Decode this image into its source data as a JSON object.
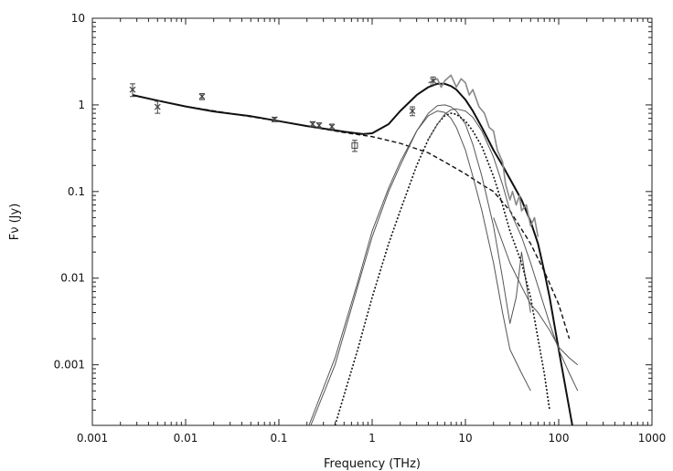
{
  "chart_data": {
    "type": "scatter",
    "title": "",
    "xlabel": "Frequency (THz)",
    "ylabel": "Fν (Jy)",
    "xscale": "log",
    "yscale": "log",
    "xlim": [
      0.001,
      1000
    ],
    "ylim": [
      0.0002,
      10
    ],
    "grid": false,
    "legend": "none",
    "x_ticks": [
      {
        "value": 0.001,
        "label": "0.001"
      },
      {
        "value": 0.01,
        "label": "0.01"
      },
      {
        "value": 0.1,
        "label": "0.1"
      },
      {
        "value": 1,
        "label": "1"
      },
      {
        "value": 10,
        "label": "10"
      },
      {
        "value": 100,
        "label": "100"
      },
      {
        "value": 1000,
        "label": "1000"
      }
    ],
    "y_ticks": [
      {
        "value": 0.001,
        "label": "0.001"
      },
      {
        "value": 0.01,
        "label": "0.01"
      },
      {
        "value": 0.1,
        "label": "0.1"
      },
      {
        "value": 1,
        "label": "1"
      },
      {
        "value": 10,
        "label": "10"
      }
    ],
    "colors": {
      "axis": "#222222",
      "model_total": "#111111",
      "component": "#555555",
      "spectrum": "#888888",
      "points": "#444444"
    },
    "points": [
      {
        "x": 0.0027,
        "y": 1.5,
        "err": 0.25,
        "marker": "x"
      },
      {
        "x": 0.005,
        "y": 0.95,
        "err": 0.15,
        "marker": "x"
      },
      {
        "x": 0.015,
        "y": 1.25,
        "err": 0.1,
        "marker": "x"
      },
      {
        "x": 0.09,
        "y": 0.68,
        "err": 0.04,
        "marker": "x"
      },
      {
        "x": 0.23,
        "y": 0.6,
        "err": 0.04,
        "marker": "x"
      },
      {
        "x": 0.27,
        "y": 0.58,
        "err": 0.04,
        "marker": "x"
      },
      {
        "x": 0.37,
        "y": 0.56,
        "err": 0.04,
        "marker": "x"
      },
      {
        "x": 0.65,
        "y": 0.34,
        "err": 0.05,
        "marker": "square"
      },
      {
        "x": 2.7,
        "y": 0.85,
        "err": 0.1,
        "marker": "x"
      },
      {
        "x": 4.5,
        "y": 1.9,
        "err": 0.2,
        "marker": "x"
      }
    ],
    "series": [
      {
        "style": "solid-thick",
        "x": [
          0.0027,
          0.005,
          0.01,
          0.02,
          0.05,
          0.1,
          0.2,
          0.5,
          0.8,
          1,
          1.5,
          2,
          3,
          4,
          5,
          6,
          7,
          8,
          10,
          12,
          15,
          20,
          25,
          30,
          40,
          50,
          60,
          70,
          80,
          100,
          120,
          140
        ],
        "y": [
          1.3,
          1.12,
          0.96,
          0.84,
          0.74,
          0.65,
          0.57,
          0.49,
          0.46,
          0.47,
          0.6,
          0.85,
          1.3,
          1.6,
          1.75,
          1.75,
          1.65,
          1.5,
          1.15,
          0.85,
          0.55,
          0.3,
          0.2,
          0.14,
          0.08,
          0.045,
          0.025,
          0.012,
          0.006,
          0.0015,
          0.0005,
          0.0002
        ]
      },
      {
        "style": "dashed",
        "x": [
          0.0027,
          0.01,
          0.1,
          0.5,
          1,
          2,
          4,
          7,
          10,
          15,
          20,
          30,
          50,
          70,
          100,
          130
        ],
        "y": [
          1.3,
          0.96,
          0.65,
          0.48,
          0.43,
          0.36,
          0.28,
          0.2,
          0.16,
          0.12,
          0.1,
          0.06,
          0.025,
          0.012,
          0.005,
          0.002
        ]
      },
      {
        "style": "solid-thin",
        "x": [
          0.22,
          0.4,
          0.7,
          1,
          1.5,
          2,
          3,
          4,
          5,
          6,
          7,
          8,
          10,
          12,
          15,
          20,
          25,
          30,
          35,
          40,
          50
        ],
        "y": [
          0.0002,
          0.001,
          0.008,
          0.03,
          0.1,
          0.2,
          0.5,
          0.8,
          0.98,
          1.0,
          0.95,
          0.85,
          0.6,
          0.35,
          0.15,
          0.04,
          0.01,
          0.003,
          0.006,
          0.02,
          0.004
        ]
      },
      {
        "style": "solid-thin",
        "x": [
          0.21,
          0.4,
          0.7,
          1,
          1.5,
          2,
          3,
          4,
          5,
          6,
          7,
          8,
          10,
          12,
          15,
          20,
          25,
          30,
          40,
          50
        ],
        "y": [
          0.0002,
          0.0012,
          0.009,
          0.035,
          0.11,
          0.22,
          0.5,
          0.75,
          0.85,
          0.82,
          0.7,
          0.55,
          0.3,
          0.15,
          0.06,
          0.015,
          0.004,
          0.0015,
          0.0008,
          0.0005
        ]
      },
      {
        "style": "dotted",
        "x": [
          0.4,
          0.7,
          1,
          1.5,
          2,
          3,
          4,
          5,
          6,
          7,
          8,
          10,
          12,
          15,
          20,
          25,
          30,
          40,
          50,
          60,
          70,
          80
        ],
        "y": [
          0.0002,
          0.0015,
          0.006,
          0.025,
          0.06,
          0.2,
          0.4,
          0.6,
          0.75,
          0.8,
          0.78,
          0.65,
          0.5,
          0.33,
          0.15,
          0.07,
          0.035,
          0.015,
          0.006,
          0.002,
          0.0008,
          0.0003
        ]
      },
      {
        "style": "solid-thin",
        "x": [
          4,
          5,
          6,
          7,
          8,
          10,
          12,
          15,
          20,
          25,
          30,
          40,
          50,
          60,
          80,
          100,
          130,
          160
        ],
        "y": [
          0.4,
          0.6,
          0.78,
          0.88,
          0.9,
          0.85,
          0.72,
          0.5,
          0.25,
          0.12,
          0.06,
          0.03,
          0.015,
          0.008,
          0.003,
          0.0015,
          0.0008,
          0.0005
        ]
      },
      {
        "style": "solid-thin",
        "x": [
          20,
          30,
          40,
          50,
          60,
          80,
          100,
          130,
          160
        ],
        "y": [
          0.05,
          0.015,
          0.008,
          0.005,
          0.004,
          0.0025,
          0.0016,
          0.0012,
          0.001
        ]
      },
      {
        "style": "spectrum",
        "x": [
          4,
          5,
          5.5,
          6,
          7,
          8,
          9,
          10,
          11,
          12,
          14,
          16,
          18,
          20,
          22,
          25,
          27,
          30,
          32,
          35,
          38,
          40,
          45,
          50,
          55,
          60
        ],
        "y": [
          1.8,
          2.0,
          1.6,
          1.9,
          2.2,
          1.6,
          2.0,
          1.8,
          1.3,
          1.5,
          0.95,
          0.8,
          0.55,
          0.5,
          0.3,
          0.22,
          0.12,
          0.08,
          0.1,
          0.07,
          0.09,
          0.06,
          0.07,
          0.04,
          0.05,
          0.03
        ]
      }
    ]
  }
}
